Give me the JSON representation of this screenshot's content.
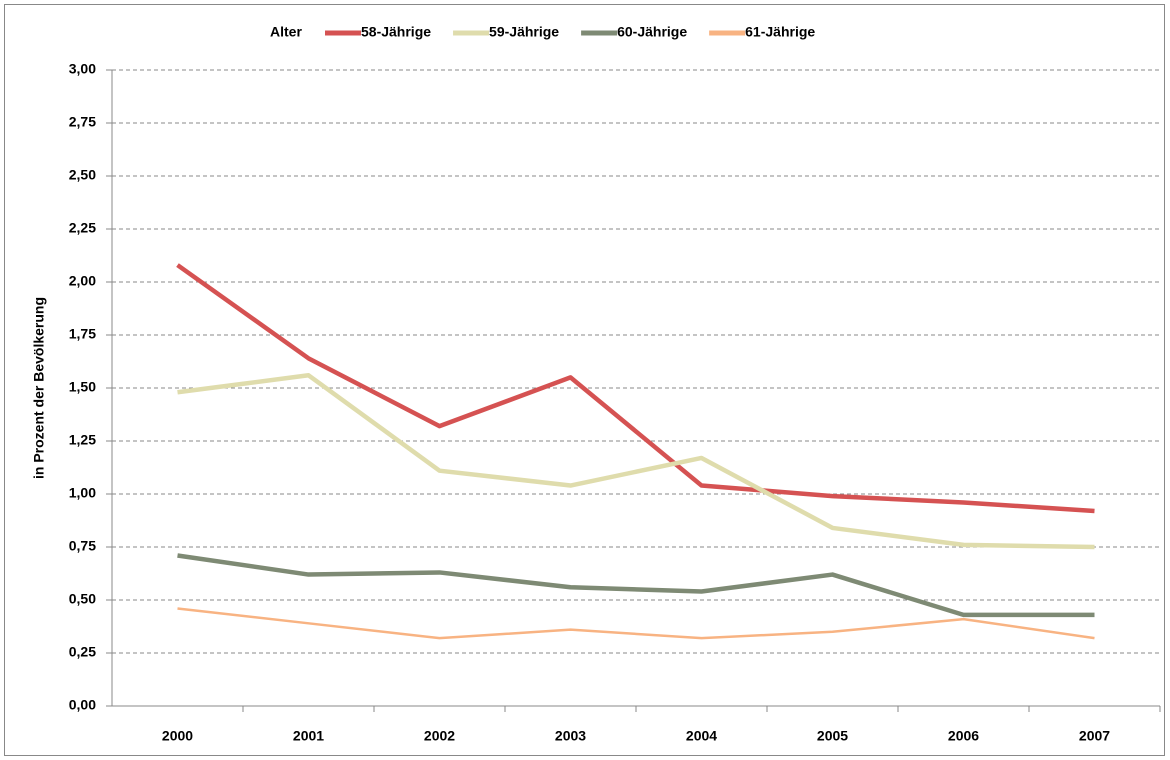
{
  "chart_data": {
    "type": "line",
    "y_label": "in Prozent der Bevölkerung",
    "legend_title": "Alter",
    "legend_position": "top",
    "grid": true,
    "categories": [
      "2000",
      "2001",
      "2002",
      "2003",
      "2004",
      "2005",
      "2006",
      "2007"
    ],
    "series": [
      {
        "name": "58-Jährige",
        "color": "#d55252",
        "values": [
          2.08,
          1.64,
          1.32,
          1.55,
          1.04,
          0.99,
          0.96,
          0.92
        ]
      },
      {
        "name": "59-Jährige",
        "color": "#dfdcac",
        "values": [
          1.48,
          1.56,
          1.11,
          1.04,
          1.17,
          0.84,
          0.76,
          0.75
        ]
      },
      {
        "name": "60-Jährige",
        "color": "#7e8a74",
        "values": [
          0.71,
          0.62,
          0.63,
          0.56,
          0.54,
          0.62,
          0.43,
          0.43
        ]
      },
      {
        "name": "61-Jährige",
        "color": "#f8b382",
        "values": [
          0.46,
          0.39,
          0.32,
          0.36,
          0.32,
          0.35,
          0.41,
          0.32
        ]
      }
    ],
    "ylim": [
      0,
      3
    ],
    "yticks": [
      {
        "value": 0,
        "label": "0,00"
      },
      {
        "value": 0.25,
        "label": "0,25"
      },
      {
        "value": 0.5,
        "label": "0,50"
      },
      {
        "value": 0.75,
        "label": "0,75"
      },
      {
        "value": 1,
        "label": "1,00"
      },
      {
        "value": 1.25,
        "label": "1,25"
      },
      {
        "value": 1.5,
        "label": "1,50"
      },
      {
        "value": 1.75,
        "label": "1,75"
      },
      {
        "value": 2,
        "label": "2,00"
      },
      {
        "value": 2.25,
        "label": "2,25"
      },
      {
        "value": 2.5,
        "label": "2,50"
      },
      {
        "value": 2.75,
        "label": "2,75"
      },
      {
        "value": 3,
        "label": "3,00"
      }
    ]
  }
}
